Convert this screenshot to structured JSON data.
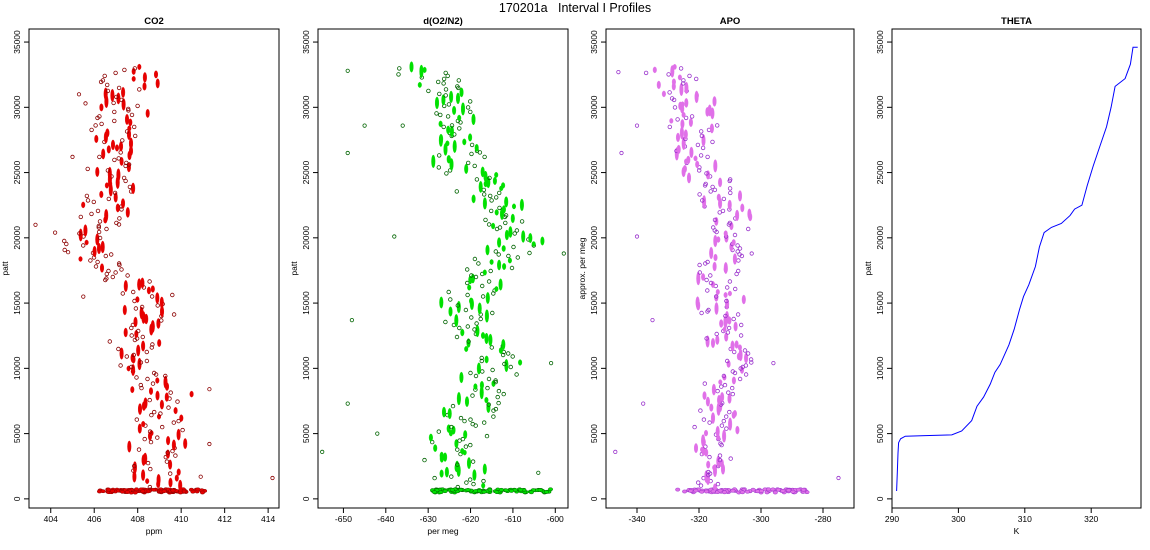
{
  "figure": {
    "title": "170201a   Interval I Profiles"
  },
  "colors": {
    "co2": "#e60000",
    "co2_edge": "#8b0000",
    "o2n2": "#00e000",
    "o2n2_edge": "#006400",
    "apo": "#e070e8",
    "apo_edge": "#9932cc",
    "theta": "#0000ff",
    "axis": "#000000"
  },
  "chart_data": [
    {
      "type": "scatter",
      "title": "CO2",
      "xlabel": "ppm",
      "ylabel": "patt",
      "xlim": [
        403,
        414.5
      ],
      "ylim": [
        -700,
        36000
      ],
      "xticks": [
        "404",
        "406",
        "408",
        "410",
        "412",
        "414"
      ],
      "yticks": [
        "0",
        "5000",
        "10000",
        "15000",
        "20000",
        "25000",
        "30000",
        "35000"
      ],
      "profile": [
        [
          600,
          408.8
        ],
        [
          2000,
          408.9
        ],
        [
          4000,
          409.0
        ],
        [
          6000,
          409.3
        ],
        [
          8000,
          409.2
        ],
        [
          10000,
          408.0
        ],
        [
          12000,
          407.7
        ],
        [
          14000,
          408.6
        ],
        [
          16000,
          408.2
        ],
        [
          17500,
          406.9
        ],
        [
          19000,
          405.8
        ],
        [
          21000,
          406.4
        ],
        [
          23000,
          406.7
        ],
        [
          25000,
          406.9
        ],
        [
          27000,
          407.2
        ],
        [
          29000,
          407.0
        ],
        [
          31000,
          407.3
        ],
        [
          33000,
          407.9
        ]
      ],
      "surface_range": [
        406.2,
        411.1
      ],
      "spread": 1.0,
      "outliers": [
        [
          1600,
          414.2
        ],
        [
          21000,
          403.3
        ],
        [
          20400,
          404.2
        ],
        [
          26200,
          405.0
        ],
        [
          31000,
          405.3
        ],
        [
          30300,
          405.6
        ],
        [
          18900,
          404.8
        ],
        [
          8400,
          411.3
        ],
        [
          4200,
          411.3
        ],
        [
          1700,
          410.9
        ],
        [
          15500,
          405.5
        ]
      ],
      "series": [
        {
          "name": "",
          "color": "#e60000"
        }
      ]
    },
    {
      "type": "scatter",
      "title": "d(O2/N2)",
      "xlabel": "per meg",
      "ylabel": "patt",
      "xlim": [
        -656,
        -597
      ],
      "ylim": [
        -700,
        36000
      ],
      "xticks": [
        "-650",
        "-640",
        "-630",
        "-620",
        "-610",
        "-600"
      ],
      "yticks": [
        "0",
        "5000",
        "10000",
        "15000",
        "20000",
        "25000",
        "30000",
        "35000"
      ],
      "profile": [
        [
          600,
          -622
        ],
        [
          2000,
          -623
        ],
        [
          4000,
          -624
        ],
        [
          6000,
          -621
        ],
        [
          8000,
          -618
        ],
        [
          10000,
          -614
        ],
        [
          12000,
          -617
        ],
        [
          14000,
          -621
        ],
        [
          16000,
          -620
        ],
        [
          18000,
          -615
        ],
        [
          20000,
          -608
        ],
        [
          22000,
          -613
        ],
        [
          24000,
          -617
        ],
        [
          26000,
          -622
        ],
        [
          28000,
          -624
        ],
        [
          30000,
          -623
        ],
        [
          31500,
          -628
        ],
        [
          33000,
          -633
        ]
      ],
      "surface_range": [
        -629,
        -601
      ],
      "spread": 5,
      "outliers": [
        [
          3600,
          -655
        ],
        [
          26500,
          -649
        ],
        [
          32800,
          -649
        ],
        [
          13700,
          -648
        ],
        [
          7300,
          -649
        ],
        [
          28600,
          -645
        ],
        [
          5000,
          -642
        ],
        [
          20100,
          -638
        ],
        [
          28600,
          -636
        ],
        [
          18800,
          -598
        ],
        [
          2000,
          -604
        ],
        [
          10400,
          -601
        ]
      ],
      "series": [
        {
          "name": "",
          "color": "#00e000"
        }
      ]
    },
    {
      "type": "scatter",
      "title": "APO",
      "xlabel": "",
      "ylabel": "approx. per meg",
      "xlim": [
        -350,
        -270
      ],
      "ylim": [
        -700,
        36000
      ],
      "xticks": [
        "-340",
        "-320",
        "-300",
        "-280"
      ],
      "yticks": [
        "0",
        "5000",
        "10000",
        "15000",
        "20000",
        "25000",
        "30000",
        "35000"
      ],
      "profile": [
        [
          600,
          -318
        ],
        [
          2000,
          -316
        ],
        [
          4000,
          -317
        ],
        [
          6000,
          -315
        ],
        [
          8000,
          -313
        ],
        [
          10000,
          -306
        ],
        [
          12000,
          -310
        ],
        [
          14000,
          -313
        ],
        [
          16000,
          -313
        ],
        [
          18000,
          -314
        ],
        [
          20000,
          -310
        ],
        [
          22000,
          -310
        ],
        [
          24000,
          -316
        ],
        [
          26000,
          -322
        ],
        [
          28000,
          -322
        ],
        [
          30000,
          -322
        ],
        [
          31500,
          -326
        ],
        [
          33000,
          -330
        ]
      ],
      "surface_range": [
        -327,
        -285
      ],
      "spread": 6,
      "outliers": [
        [
          1600,
          -275
        ],
        [
          32700,
          -346
        ],
        [
          26500,
          -345
        ],
        [
          20100,
          -340
        ],
        [
          13700,
          -335
        ],
        [
          7300,
          -338
        ],
        [
          3600,
          -347
        ],
        [
          28600,
          -340
        ],
        [
          18800,
          -303
        ],
        [
          10400,
          -296
        ]
      ],
      "series": [
        {
          "name": "",
          "color": "#e070e8"
        }
      ]
    },
    {
      "type": "line",
      "title": "THETA",
      "xlabel": "K",
      "ylabel": "patt",
      "xlim": [
        290,
        327.5
      ],
      "ylim": [
        -700,
        36000
      ],
      "xticks": [
        "290",
        "300",
        "310",
        "320"
      ],
      "yticks": [
        "0",
        "5000",
        "10000",
        "15000",
        "20000",
        "25000",
        "30000",
        "35000"
      ],
      "series": [
        {
          "name": "",
          "color": "#0000ff",
          "points": [
            [
              290.7,
              600
            ],
            [
              290.8,
              2000
            ],
            [
              290.9,
              3500
            ],
            [
              291.0,
              4300
            ],
            [
              291.3,
              4600
            ],
            [
              292.0,
              4800
            ],
            [
              295.0,
              4850
            ],
            [
              299.0,
              4900
            ],
            [
              300.5,
              5200
            ],
            [
              302.0,
              6000
            ],
            [
              302.8,
              7100
            ],
            [
              303.8,
              7800
            ],
            [
              304.8,
              8800
            ],
            [
              305.5,
              9700
            ],
            [
              306.3,
              10300
            ],
            [
              307.6,
              11800
            ],
            [
              308.4,
              13000
            ],
            [
              309.2,
              14500
            ],
            [
              309.8,
              15500
            ],
            [
              310.6,
              16400
            ],
            [
              311.6,
              17800
            ],
            [
              312.2,
              19300
            ],
            [
              312.9,
              20400
            ],
            [
              314.0,
              20800
            ],
            [
              315.5,
              21100
            ],
            [
              316.8,
              21700
            ],
            [
              317.5,
              22200
            ],
            [
              318.6,
              22500
            ],
            [
              319.4,
              24000
            ],
            [
              320.3,
              25500
            ],
            [
              321.3,
              27000
            ],
            [
              322.3,
              28500
            ],
            [
              323.0,
              30000
            ],
            [
              323.6,
              31600
            ],
            [
              325.1,
              32200
            ],
            [
              325.9,
              33300
            ],
            [
              326.3,
              34600
            ],
            [
              327.0,
              34600
            ]
          ]
        }
      ]
    }
  ]
}
